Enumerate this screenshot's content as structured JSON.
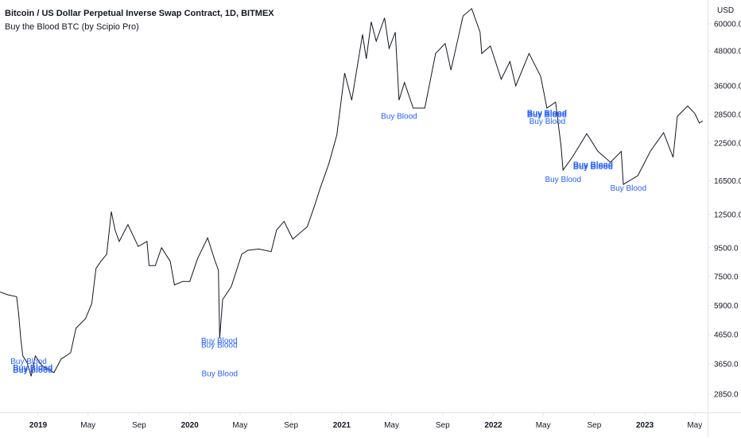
{
  "legend": {
    "title": "Bitcoin / US Dollar Perpetual Inverse Swap Contract, 1D, BITMEX",
    "indicator": "Buy the Blood BTC (by Scipio Pro)"
  },
  "colors": {
    "price": "#131722",
    "signal": "#2962ff",
    "axis_line": "#e0e3eb",
    "axis_text": "#131722"
  },
  "chart_data": {
    "type": "line",
    "title": "Bitcoin / US Dollar Perpetual Inverse Swap Contract, 1D, BITMEX",
    "y_scale": "log",
    "y_unit": "USD",
    "ylim": [
      2450,
      73000
    ],
    "xlim": [
      "2018-10-01",
      "2023-06-01"
    ],
    "grid": false,
    "y_ticks": [
      60000,
      48000,
      36000,
      28500,
      22500,
      16500,
      12500,
      9500,
      7500,
      5900,
      4650,
      3650,
      2850
    ],
    "y_tick_labels": [
      "60000.0",
      "48000.0",
      "36000.0",
      "28500.0",
      "22500.0",
      "16500.0",
      "12500.0",
      "9500.0",
      "7500.0",
      "5900.0",
      "4650.0",
      "3650.0",
      "2850.0"
    ],
    "x_ticks": [
      {
        "date": "2019-01-01",
        "label": "2019",
        "year": true
      },
      {
        "date": "2019-05-01",
        "label": "May",
        "year": false
      },
      {
        "date": "2019-09-01",
        "label": "Sep",
        "year": false
      },
      {
        "date": "2020-01-01",
        "label": "2020",
        "year": true
      },
      {
        "date": "2020-05-01",
        "label": "May",
        "year": false
      },
      {
        "date": "2020-09-01",
        "label": "Sep",
        "year": false
      },
      {
        "date": "2021-01-01",
        "label": "2021",
        "year": true
      },
      {
        "date": "2021-05-01",
        "label": "May",
        "year": false
      },
      {
        "date": "2021-09-01",
        "label": "Sep",
        "year": false
      },
      {
        "date": "2022-01-01",
        "label": "2022",
        "year": true
      },
      {
        "date": "2022-05-01",
        "label": "May",
        "year": false
      },
      {
        "date": "2022-09-01",
        "label": "Sep",
        "year": false
      },
      {
        "date": "2023-01-01",
        "label": "2023",
        "year": true
      },
      {
        "date": "2023-05-01",
        "label": "May",
        "year": false
      }
    ],
    "series": [
      {
        "values": [
          [
            "2018-10-01",
            6600
          ],
          [
            "2018-10-20",
            6450
          ],
          [
            "2018-11-10",
            6350
          ],
          [
            "2018-11-15",
            5500
          ],
          [
            "2018-11-20",
            4500
          ],
          [
            "2018-11-25",
            3900
          ],
          [
            "2018-12-05",
            3700
          ],
          [
            "2018-12-15",
            3300
          ],
          [
            "2018-12-25",
            3900
          ],
          [
            "2019-01-10",
            3600
          ],
          [
            "2019-02-08",
            3400
          ],
          [
            "2019-02-25",
            3800
          ],
          [
            "2019-03-20",
            4000
          ],
          [
            "2019-04-02",
            4900
          ],
          [
            "2019-04-25",
            5300
          ],
          [
            "2019-05-10",
            6000
          ],
          [
            "2019-05-20",
            8000
          ],
          [
            "2019-06-01",
            8500
          ],
          [
            "2019-06-15",
            9000
          ],
          [
            "2019-06-26",
            12800
          ],
          [
            "2019-07-05",
            11000
          ],
          [
            "2019-07-15",
            10000
          ],
          [
            "2019-08-05",
            11500
          ],
          [
            "2019-08-30",
            9600
          ],
          [
            "2019-09-20",
            10000
          ],
          [
            "2019-09-25",
            8200
          ],
          [
            "2019-10-10",
            8200
          ],
          [
            "2019-10-25",
            9500
          ],
          [
            "2019-11-15",
            8500
          ],
          [
            "2019-11-25",
            7000
          ],
          [
            "2019-12-15",
            7200
          ],
          [
            "2020-01-01",
            7200
          ],
          [
            "2020-01-20",
            8700
          ],
          [
            "2020-02-13",
            10300
          ],
          [
            "2020-03-01",
            8600
          ],
          [
            "2020-03-10",
            7900
          ],
          [
            "2020-03-13",
            4500
          ],
          [
            "2020-03-20",
            6200
          ],
          [
            "2020-04-10",
            6900
          ],
          [
            "2020-05-05",
            9000
          ],
          [
            "2020-05-20",
            9300
          ],
          [
            "2020-06-15",
            9400
          ],
          [
            "2020-07-15",
            9200
          ],
          [
            "2020-07-28",
            11000
          ],
          [
            "2020-08-15",
            11800
          ],
          [
            "2020-09-05",
            10200
          ],
          [
            "2020-10-10",
            11300
          ],
          [
            "2020-10-28",
            13500
          ],
          [
            "2020-11-10",
            15500
          ],
          [
            "2020-12-01",
            19000
          ],
          [
            "2020-12-20",
            24000
          ],
          [
            "2021-01-08",
            40000
          ],
          [
            "2021-01-25",
            32000
          ],
          [
            "2021-02-20",
            55000
          ],
          [
            "2021-03-01",
            45000
          ],
          [
            "2021-03-13",
            61000
          ],
          [
            "2021-03-25",
            52000
          ],
          [
            "2021-04-14",
            63000
          ],
          [
            "2021-04-25",
            49000
          ],
          [
            "2021-05-10",
            56000
          ],
          [
            "2021-05-19",
            32000
          ],
          [
            "2021-06-01",
            37000
          ],
          [
            "2021-06-22",
            30000
          ],
          [
            "2021-07-20",
            30000
          ],
          [
            "2021-08-15",
            47000
          ],
          [
            "2021-09-07",
            51000
          ],
          [
            "2021-09-21",
            41000
          ],
          [
            "2021-10-20",
            64000
          ],
          [
            "2021-11-10",
            68000
          ],
          [
            "2021-11-30",
            56000
          ],
          [
            "2021-12-04",
            47000
          ],
          [
            "2021-12-25",
            50000
          ],
          [
            "2022-01-20",
            38000
          ],
          [
            "2022-02-10",
            44000
          ],
          [
            "2022-02-24",
            36000
          ],
          [
            "2022-03-28",
            47000
          ],
          [
            "2022-04-25",
            39000
          ],
          [
            "2022-05-10",
            30000
          ],
          [
            "2022-05-31",
            31500
          ],
          [
            "2022-06-13",
            22000
          ],
          [
            "2022-06-18",
            18000
          ],
          [
            "2022-07-10",
            20000
          ],
          [
            "2022-08-14",
            24300
          ],
          [
            "2022-09-10",
            21000
          ],
          [
            "2022-10-10",
            19200
          ],
          [
            "2022-11-05",
            21000
          ],
          [
            "2022-11-10",
            16000
          ],
          [
            "2022-12-15",
            17200
          ],
          [
            "2023-01-14",
            21000
          ],
          [
            "2023-02-15",
            24500
          ],
          [
            "2023-03-10",
            20000
          ],
          [
            "2023-03-20",
            28000
          ],
          [
            "2023-04-14",
            30500
          ],
          [
            "2023-05-01",
            28700
          ],
          [
            "2023-05-12",
            26500
          ],
          [
            "2023-05-20",
            27000
          ]
        ]
      }
    ],
    "annotations": [
      {
        "date": "2018-12-09",
        "value": 3650,
        "text": "Buy Blood",
        "bold": false
      },
      {
        "date": "2018-12-19",
        "value": 3400,
        "text": "Buy Blood",
        "bold": true
      },
      {
        "date": "2018-12-19",
        "value": 3460,
        "text": "Buy Blood",
        "bold": true
      },
      {
        "date": "2020-03-12",
        "value": 4330,
        "text": "Buy Blood",
        "bold": false
      },
      {
        "date": "2020-03-12",
        "value": 4180,
        "text": "Buy Blood",
        "bold": false
      },
      {
        "date": "2020-03-13",
        "value": 3300,
        "text": "Buy Blood",
        "bold": false
      },
      {
        "date": "2021-05-19",
        "value": 27500,
        "text": "Buy Blood",
        "bold": false
      },
      {
        "date": "2022-05-10",
        "value": 27800,
        "text": "Buy Blood",
        "bold": true
      },
      {
        "date": "2022-05-10",
        "value": 28200,
        "text": "Buy Blood",
        "bold": true
      },
      {
        "date": "2022-05-11",
        "value": 26300,
        "text": "Buy Blood",
        "bold": false
      },
      {
        "date": "2022-06-18",
        "value": 16300,
        "text": "Buy Blood",
        "bold": false
      },
      {
        "date": "2022-08-29",
        "value": 18400,
        "text": "Buy Blood",
        "bold": true
      },
      {
        "date": "2022-08-29",
        "value": 18100,
        "text": "Buy Blood",
        "bold": true
      },
      {
        "date": "2022-11-22",
        "value": 15200,
        "text": "Buy Blood",
        "bold": false
      }
    ]
  }
}
